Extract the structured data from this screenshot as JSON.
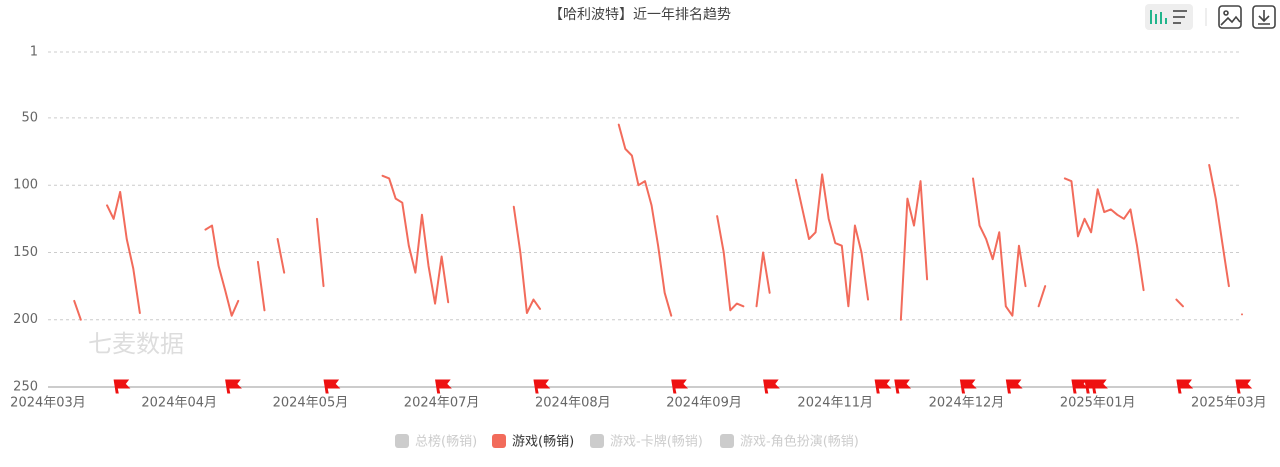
{
  "chart_data": {
    "type": "line",
    "title": "【哈利波特】近一年排名趋势",
    "watermark": "七麦数据",
    "categories": [
      "2024年03月",
      null,
      null,
      null,
      null,
      null,
      null,
      null,
      null,
      null,
      null,
      null,
      null,
      null,
      null,
      null,
      null,
      null,
      null,
      null,
      "2024年04月",
      null,
      null,
      null,
      null,
      null,
      null,
      null,
      null,
      null,
      null,
      null,
      null,
      null,
      null,
      null,
      null,
      null,
      null,
      null,
      "2024年05月",
      null,
      null,
      null,
      null,
      null,
      null,
      null,
      null,
      null,
      null,
      null,
      null,
      null,
      null,
      null,
      null,
      null,
      null,
      null,
      "2024年07月",
      null,
      null,
      null,
      null,
      null,
      null,
      null,
      null,
      null,
      null,
      null,
      null,
      null,
      null,
      null,
      null,
      null,
      null,
      null,
      "2024年08月",
      null,
      null,
      null,
      null,
      null,
      null,
      null,
      null,
      null,
      null,
      null,
      null,
      null,
      null,
      null,
      null,
      null,
      null,
      null,
      "2024年09月",
      null,
      null,
      null,
      null,
      null,
      null,
      null,
      null,
      null,
      null,
      null,
      null,
      null,
      null,
      null,
      null,
      null,
      null,
      null,
      "2024年11月",
      null,
      null,
      null,
      null,
      null,
      null,
      null,
      null,
      null,
      null,
      null,
      null,
      null,
      null,
      null,
      null,
      null,
      null,
      null,
      "2024年12月",
      null,
      null,
      null,
      null,
      null,
      null,
      null,
      null,
      null,
      null,
      null,
      null,
      null,
      null,
      null,
      null,
      null,
      null,
      null,
      "2025年01月",
      null,
      null,
      null,
      null,
      null,
      null,
      null,
      null,
      null,
      null,
      null,
      null,
      null,
      null,
      null,
      null,
      null,
      null,
      null,
      "2025年03月",
      null,
      null
    ],
    "series": [
      {
        "name": "游戏(畅销)",
        "color": "#f26b5b",
        "values": [
          null,
          null,
          null,
          null,
          186,
          200,
          null,
          null,
          null,
          115,
          125,
          105,
          140,
          162,
          195,
          null,
          null,
          null,
          null,
          null,
          null,
          null,
          null,
          null,
          133,
          130,
          160,
          178,
          197,
          186,
          null,
          null,
          157,
          193,
          null,
          140,
          165,
          null,
          null,
          null,
          null,
          125,
          175,
          null,
          null,
          null,
          null,
          null,
          null,
          null,
          null,
          93,
          95,
          110,
          113,
          145,
          165,
          122,
          160,
          188,
          153,
          187,
          null,
          null,
          null,
          null,
          null,
          null,
          null,
          null,
          null,
          116,
          150,
          195,
          185,
          192,
          null,
          null,
          null,
          null,
          null,
          null,
          null,
          null,
          null,
          null,
          null,
          55,
          73,
          78,
          100,
          97,
          115,
          145,
          180,
          197,
          null,
          null,
          null,
          null,
          null,
          null,
          123,
          150,
          193,
          188,
          190,
          null,
          190,
          150,
          180,
          null,
          null,
          null,
          96,
          118,
          140,
          135,
          92,
          125,
          143,
          145,
          190,
          130,
          150,
          185,
          null,
          null,
          null,
          null,
          200,
          110,
          130,
          97,
          170,
          null,
          null,
          null,
          null,
          null,
          null,
          95,
          130,
          140,
          155,
          135,
          190,
          197,
          145,
          175,
          null,
          190,
          175,
          null,
          null,
          95,
          97,
          138,
          125,
          135,
          103,
          120,
          118,
          122,
          125,
          118,
          145,
          178,
          null,
          null,
          null,
          null,
          185,
          190,
          null,
          null,
          null,
          85,
          110,
          143,
          175,
          null,
          196
        ]
      }
    ],
    "legend": [
      {
        "name": "总榜(畅销)",
        "selected": false
      },
      {
        "name": "游戏(畅销)",
        "selected": true
      },
      {
        "name": "游戏-卡牌(畅销)",
        "selected": false
      },
      {
        "name": "游戏-角色扮演(畅销)",
        "selected": false
      }
    ],
    "inactive_color": "#cccccc",
    "flags": [
      11,
      28,
      43,
      60,
      75,
      96,
      110,
      127,
      130,
      140,
      147,
      157,
      159,
      160,
      173,
      182
    ],
    "flag_color": "#ee1111",
    "ylim": [
      1,
      250
    ],
    "y_inverse": true,
    "yticks": [
      1,
      50,
      100,
      150,
      200,
      250
    ],
    "grid": true
  }
}
